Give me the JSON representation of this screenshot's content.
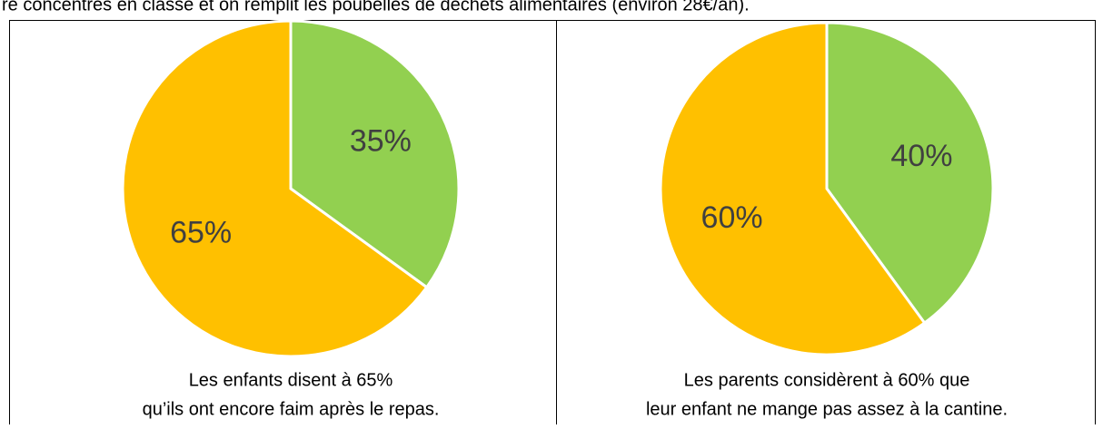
{
  "intro": "re concentrés en classe et on remplit les poubelles de déchets alimentaires (environ 28€/an).",
  "chart_data": [
    {
      "type": "pie",
      "categories": [
        null,
        null
      ],
      "values": [
        35,
        65
      ],
      "value_labels": [
        "35%",
        "65%"
      ],
      "colors": [
        "#92d050",
        "#ffc000"
      ],
      "caption": [
        "Les enfants disent à 65%",
        "qu’ils ont encore faim après le repas."
      ]
    },
    {
      "type": "pie",
      "categories": [
        null,
        null
      ],
      "values": [
        40,
        60
      ],
      "value_labels": [
        "40%",
        "60%"
      ],
      "colors": [
        "#92d050",
        "#ffc000"
      ],
      "caption": [
        "Les parents considèrent à 60% que",
        "leur enfant ne mange pas assez à la cantine."
      ]
    }
  ]
}
